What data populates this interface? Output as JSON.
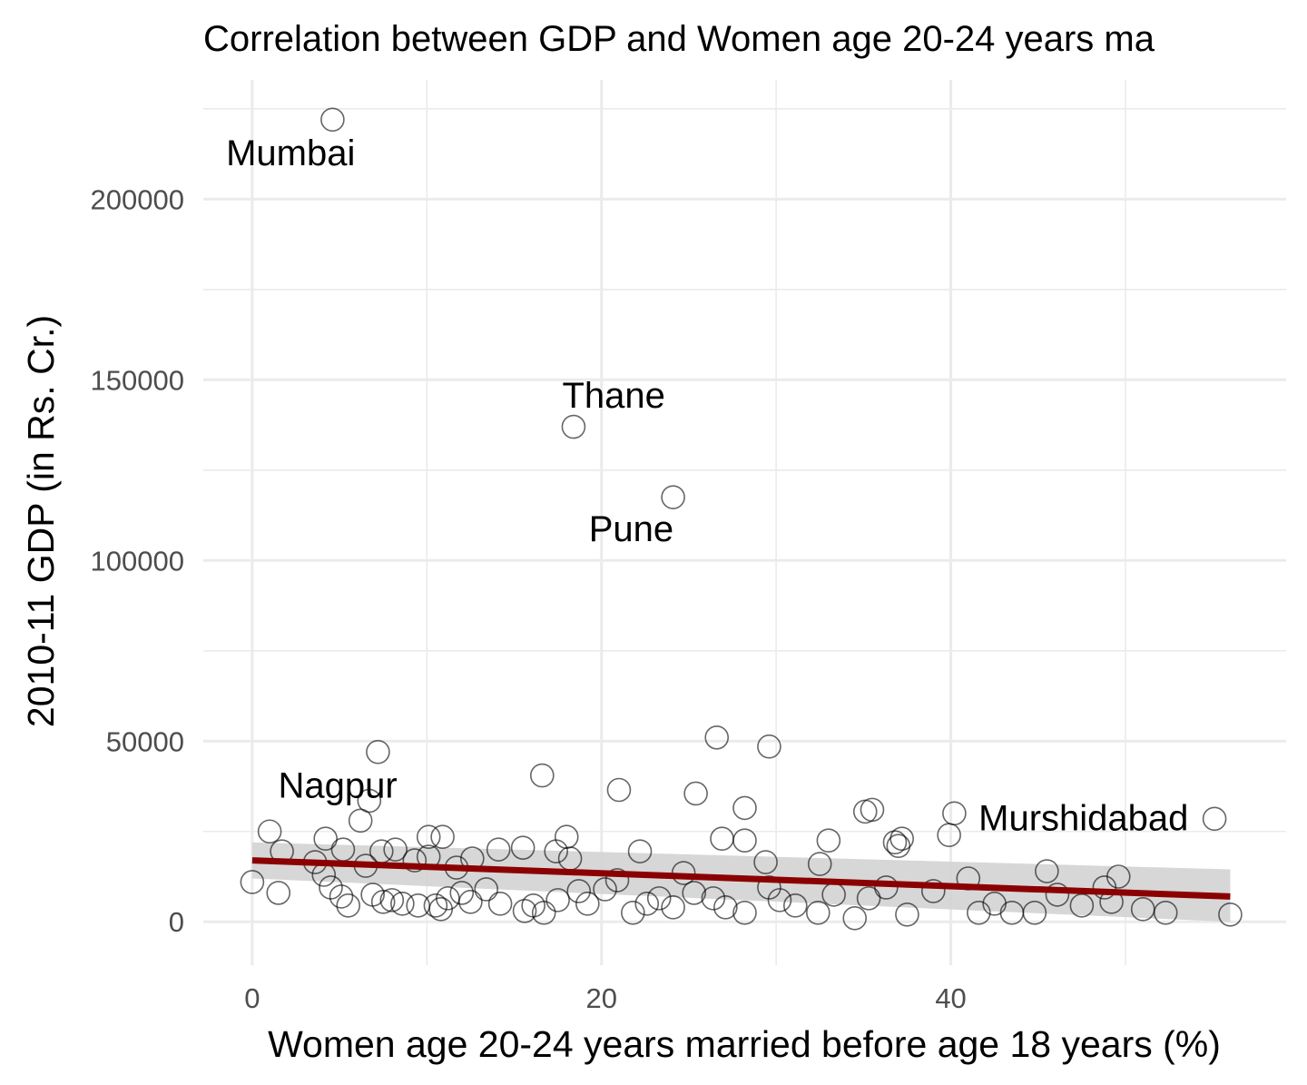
{
  "chart_data": {
    "type": "scatter",
    "title": "Correlation between GDP and Women age 20-24 years ma",
    "xlabel": "Women age 20-24 years married before age 18 years (%)",
    "ylabel": "2010-11 GDP (in Rs. Cr.)",
    "xlim": [
      -2.8,
      59.2
    ],
    "ylim": [
      -12000,
      233000
    ],
    "x_ticks": [
      0,
      20,
      40
    ],
    "x_tick_labels": [
      "0",
      "20",
      "40"
    ],
    "y_ticks": [
      0,
      50000,
      100000,
      150000,
      200000
    ],
    "y_tick_labels": [
      "0",
      "50000",
      "100000",
      "150000",
      "200000"
    ],
    "grid": true,
    "colors": {
      "points": "#000000",
      "trend_line": "#8b0000",
      "confidence_band": "#d3d3d3",
      "grid": "#ebebeb"
    },
    "annotations": [
      {
        "label": "Mumbai",
        "x": 2.2,
        "y": 212000
      },
      {
        "label": "Thane",
        "x": 20.7,
        "y": 145000
      },
      {
        "label": "Pune",
        "x": 21.7,
        "y": 108000
      },
      {
        "label": "Nagpur",
        "x": 4.9,
        "y": 37000
      },
      {
        "label": "Murshidabad",
        "x": 47.6,
        "y": 28000
      }
    ],
    "trend": {
      "x": [
        0,
        56
      ],
      "y": [
        17000,
        7000
      ],
      "ci_low": [
        12000,
        0
      ],
      "ci_high": [
        22000,
        14500
      ]
    },
    "points": [
      [
        4.6,
        222000
      ],
      [
        18.4,
        137000
      ],
      [
        24.1,
        117500
      ],
      [
        26.6,
        51000
      ],
      [
        29.6,
        48500
      ],
      [
        7.2,
        47000
      ],
      [
        16.6,
        40500
      ],
      [
        21.0,
        36500
      ],
      [
        25.4,
        35500
      ],
      [
        6.7,
        33500
      ],
      [
        28.2,
        31500
      ],
      [
        35.1,
        30500
      ],
      [
        35.5,
        31000
      ],
      [
        40.2,
        30000
      ],
      [
        55.1,
        28500
      ],
      [
        6.2,
        28000
      ],
      [
        1.0,
        25000
      ],
      [
        4.2,
        23000
      ],
      [
        10.1,
        23500
      ],
      [
        10.9,
        23500
      ],
      [
        18.0,
        23500
      ],
      [
        26.9,
        23000
      ],
      [
        28.2,
        22500
      ],
      [
        33.0,
        22500
      ],
      [
        37.2,
        23000
      ],
      [
        37.0,
        21000
      ],
      [
        36.8,
        22000
      ],
      [
        39.9,
        24000
      ],
      [
        1.7,
        19500
      ],
      [
        5.2,
        20000
      ],
      [
        7.4,
        19500
      ],
      [
        8.2,
        20000
      ],
      [
        14.1,
        20000
      ],
      [
        15.5,
        20500
      ],
      [
        17.4,
        19500
      ],
      [
        22.2,
        19500
      ],
      [
        3.6,
        16500
      ],
      [
        6.5,
        15500
      ],
      [
        9.3,
        17000
      ],
      [
        10.1,
        18000
      ],
      [
        11.7,
        15000
      ],
      [
        12.6,
        17500
      ],
      [
        18.2,
        17500
      ],
      [
        24.7,
        13500
      ],
      [
        29.4,
        16500
      ],
      [
        32.5,
        16000
      ],
      [
        45.5,
        14000
      ],
      [
        0.0,
        11000
      ],
      [
        1.5,
        8000
      ],
      [
        4.1,
        13000
      ],
      [
        4.5,
        9500
      ],
      [
        5.1,
        7000
      ],
      [
        5.5,
        4500
      ],
      [
        6.9,
        7500
      ],
      [
        7.5,
        5500
      ],
      [
        8.0,
        6000
      ],
      [
        8.6,
        5000
      ],
      [
        9.5,
        4500
      ],
      [
        10.5,
        4500
      ],
      [
        10.8,
        3500
      ],
      [
        11.2,
        6500
      ],
      [
        12.0,
        8000
      ],
      [
        12.5,
        5500
      ],
      [
        13.4,
        9000
      ],
      [
        14.2,
        5000
      ],
      [
        15.6,
        3000
      ],
      [
        16.1,
        4500
      ],
      [
        16.7,
        2500
      ],
      [
        17.5,
        6000
      ],
      [
        18.7,
        8500
      ],
      [
        19.2,
        5000
      ],
      [
        20.2,
        9000
      ],
      [
        20.9,
        11500
      ],
      [
        21.8,
        2500
      ],
      [
        22.6,
        5000
      ],
      [
        23.3,
        6500
      ],
      [
        24.1,
        4000
      ],
      [
        25.3,
        8000
      ],
      [
        26.4,
        6500
      ],
      [
        27.1,
        4000
      ],
      [
        28.2,
        2500
      ],
      [
        29.6,
        9500
      ],
      [
        30.2,
        6000
      ],
      [
        31.1,
        4500
      ],
      [
        32.4,
        2500
      ],
      [
        33.3,
        7500
      ],
      [
        34.5,
        1000
      ],
      [
        35.3,
        6500
      ],
      [
        36.3,
        9500
      ],
      [
        37.5,
        2000
      ],
      [
        39.0,
        8500
      ],
      [
        41.0,
        12000
      ],
      [
        41.6,
        2500
      ],
      [
        42.5,
        5000
      ],
      [
        43.5,
        2500
      ],
      [
        44.8,
        2500
      ],
      [
        46.1,
        7500
      ],
      [
        47.5,
        4500
      ],
      [
        48.8,
        9500
      ],
      [
        49.2,
        5500
      ],
      [
        49.6,
        12500
      ],
      [
        51.0,
        3500
      ],
      [
        52.3,
        2500
      ],
      [
        56.0,
        2000
      ]
    ]
  }
}
